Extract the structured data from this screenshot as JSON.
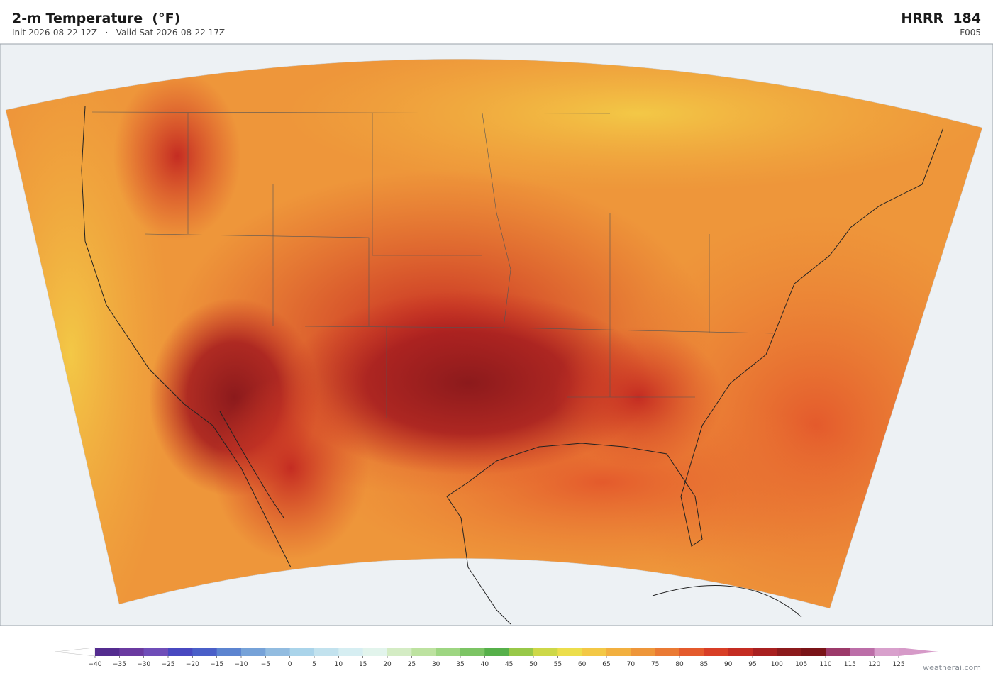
{
  "header": {
    "title": "2-m Temperature  (°F)",
    "init": "Init 2026-08-22 12Z",
    "separator": "·",
    "valid": "Valid Sat 2026-08-22 17Z",
    "model": "HRRR  184",
    "forecast_hour": "F005"
  },
  "colorbar": {
    "ticks": [
      {
        "value": -40,
        "label": "−40"
      },
      {
        "value": -35,
        "label": "−35"
      },
      {
        "value": -30,
        "label": "−30"
      },
      {
        "value": -25,
        "label": "−25"
      },
      {
        "value": -20,
        "label": "−20"
      },
      {
        "value": -15,
        "label": "−15"
      },
      {
        "value": -10,
        "label": "−10"
      },
      {
        "value": -5,
        "label": "−5"
      },
      0,
      5,
      10,
      15,
      20,
      25,
      30,
      35,
      40,
      45,
      50,
      55,
      60,
      65,
      70,
      75,
      80,
      85,
      90,
      95,
      100,
      105,
      110,
      115,
      120,
      125
    ],
    "colors": [
      "#542c8f",
      "#6a3aa0",
      "#6f4db8",
      "#4848c0",
      "#4a5fc8",
      "#5c84d0",
      "#76a2d8",
      "#92bce0",
      "#aad4ea",
      "#c2e2ee",
      "#d6eef2",
      "#e2f4ec",
      "#d4ecc4",
      "#bde2a0",
      "#9ed682",
      "#7cc464",
      "#56b04a",
      "#98c848",
      "#cdd848",
      "#ecde4c",
      "#f3c846",
      "#f2b040",
      "#ee963a",
      "#ea7a34",
      "#e45a2c",
      "#d83e26",
      "#c42c22",
      "#a82020",
      "#8c1a1c",
      "#7a1418",
      "#9c3a6a",
      "#bc6ea8",
      "#d8a0cc"
    ],
    "under_color": "#ffffff",
    "over_color": "#d69ac8"
  },
  "watermark": "weatherai.com"
}
